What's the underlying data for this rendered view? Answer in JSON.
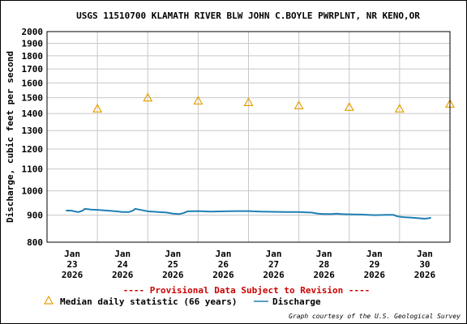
{
  "chart_data": {
    "type": "line",
    "title": "USGS 11510700 KLAMATH RIVER BLW JOHN C.BOYLE PWRPLNT, NR KENO,OR",
    "ylabel": "Discharge, cubic feet per second",
    "xlabel": "",
    "y_scale": "log",
    "ylim": [
      800,
      2000
    ],
    "y_ticks": [
      800,
      900,
      1000,
      1100,
      1200,
      1300,
      1400,
      1500,
      1600,
      1700,
      1800,
      1900,
      2000
    ],
    "y_tick_labels": [
      "800",
      "900",
      "1000",
      "1100",
      "1200",
      "1300",
      "1400",
      "1500",
      "1600",
      "1700",
      "1800",
      "1900",
      "2000"
    ],
    "x_ticks": [
      {
        "month": "Jan",
        "day": "23",
        "year": "2026"
      },
      {
        "month": "Jan",
        "day": "24",
        "year": "2026"
      },
      {
        "month": "Jan",
        "day": "25",
        "year": "2026"
      },
      {
        "month": "Jan",
        "day": "26",
        "year": "2026"
      },
      {
        "month": "Jan",
        "day": "27",
        "year": "2026"
      },
      {
        "month": "Jan",
        "day": "28",
        "year": "2026"
      },
      {
        "month": "Jan",
        "day": "29",
        "year": "2026"
      },
      {
        "month": "Jan",
        "day": "30",
        "year": "2026"
      }
    ],
    "grid": true,
    "series": [
      {
        "name": "Median daily statistic (66 years)",
        "kind": "triangle-markers",
        "color": "#e6a000",
        "points": [
          {
            "x": "2026-01-23 12:00",
            "y": 1430
          },
          {
            "x": "2026-01-24 12:00",
            "y": 1500
          },
          {
            "x": "2026-01-25 12:00",
            "y": 1480
          },
          {
            "x": "2026-01-26 12:00",
            "y": 1470
          },
          {
            "x": "2026-01-27 12:00",
            "y": 1450
          },
          {
            "x": "2026-01-28 12:00",
            "y": 1440
          },
          {
            "x": "2026-01-29 12:00",
            "y": 1430
          },
          {
            "x": "2026-01-30 12:00",
            "y": 1460
          }
        ]
      },
      {
        "name": "Discharge",
        "kind": "line",
        "color": "#1f7fb4",
        "points": [
          {
            "x": "2026-01-22 21:00",
            "y": 918
          },
          {
            "x": "2026-01-22 23:30",
            "y": 918
          },
          {
            "x": "2026-01-23 01:00",
            "y": 915
          },
          {
            "x": "2026-01-23 03:00",
            "y": 912
          },
          {
            "x": "2026-01-23 05:00",
            "y": 918
          },
          {
            "x": "2026-01-23 06:00",
            "y": 925
          },
          {
            "x": "2026-01-23 09:00",
            "y": 922
          },
          {
            "x": "2026-01-23 13:00",
            "y": 920
          },
          {
            "x": "2026-01-23 18:00",
            "y": 917
          },
          {
            "x": "2026-01-23 21:00",
            "y": 915
          },
          {
            "x": "2026-01-24 00:00",
            "y": 912
          },
          {
            "x": "2026-01-24 03:00",
            "y": 912
          },
          {
            "x": "2026-01-24 05:00",
            "y": 918
          },
          {
            "x": "2026-01-24 06:00",
            "y": 925
          },
          {
            "x": "2026-01-24 09:00",
            "y": 920
          },
          {
            "x": "2026-01-24 12:00",
            "y": 915
          },
          {
            "x": "2026-01-24 17:00",
            "y": 912
          },
          {
            "x": "2026-01-24 21:00",
            "y": 910
          },
          {
            "x": "2026-01-25 00:00",
            "y": 906
          },
          {
            "x": "2026-01-25 03:00",
            "y": 904
          },
          {
            "x": "2026-01-25 05:00",
            "y": 908
          },
          {
            "x": "2026-01-25 07:00",
            "y": 915
          },
          {
            "x": "2026-01-25 12:00",
            "y": 916
          },
          {
            "x": "2026-01-25 18:00",
            "y": 914
          },
          {
            "x": "2026-01-26 00:00",
            "y": 915
          },
          {
            "x": "2026-01-26 06:00",
            "y": 916
          },
          {
            "x": "2026-01-26 12:00",
            "y": 916
          },
          {
            "x": "2026-01-26 18:00",
            "y": 914
          },
          {
            "x": "2026-01-27 00:00",
            "y": 913
          },
          {
            "x": "2026-01-27 06:00",
            "y": 912
          },
          {
            "x": "2026-01-27 12:00",
            "y": 912
          },
          {
            "x": "2026-01-27 18:00",
            "y": 910
          },
          {
            "x": "2026-01-27 21:00",
            "y": 906
          },
          {
            "x": "2026-01-28 00:00",
            "y": 904
          },
          {
            "x": "2026-01-28 04:00",
            "y": 904
          },
          {
            "x": "2026-01-28 06:00",
            "y": 906
          },
          {
            "x": "2026-01-28 08:00",
            "y": 904
          },
          {
            "x": "2026-01-28 12:00",
            "y": 903
          },
          {
            "x": "2026-01-28 18:00",
            "y": 902
          },
          {
            "x": "2026-01-29 00:00",
            "y": 900
          },
          {
            "x": "2026-01-29 06:00",
            "y": 901
          },
          {
            "x": "2026-01-29 09:00",
            "y": 901
          },
          {
            "x": "2026-01-29 11:00",
            "y": 895
          },
          {
            "x": "2026-01-29 14:00",
            "y": 892
          },
          {
            "x": "2026-01-29 18:00",
            "y": 890
          },
          {
            "x": "2026-01-29 21:00",
            "y": 888
          },
          {
            "x": "2026-01-30 00:00",
            "y": 886
          },
          {
            "x": "2026-01-30 02:00",
            "y": 888
          },
          {
            "x": "2026-01-30 03:00",
            "y": 890
          }
        ]
      }
    ]
  },
  "provisional_note": "---- Provisional Data Subject to Revision ----",
  "provisional_color": "#cc0000",
  "legend": {
    "median_label": "Median daily statistic (66 years)",
    "discharge_label": "Discharge"
  },
  "credit": "Graph courtesy of the U.S. Geological Survey"
}
